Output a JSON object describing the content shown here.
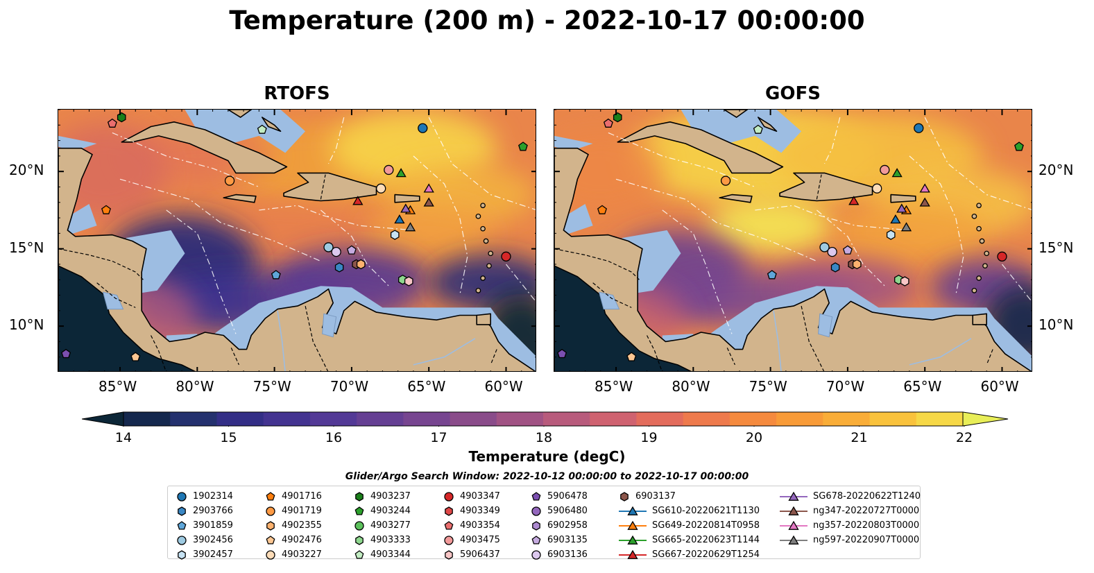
{
  "title": "Temperature (200 m) - 2022-10-17 00:00:00",
  "panels": [
    {
      "title": "RTOFS",
      "scheme": "rtofs"
    },
    {
      "title": "GOFS",
      "scheme": "gofs"
    }
  ],
  "axes": {
    "lon_ticks": [
      "85°W",
      "80°W",
      "75°W",
      "70°W",
      "65°W",
      "60°W"
    ],
    "lat_ticks": [
      "20°N",
      "15°N",
      "10°N"
    ],
    "lon_range": [
      -89,
      -58
    ],
    "lat_range": [
      7,
      24
    ]
  },
  "colorbar": {
    "label": "Temperature (degC)",
    "ticks": [
      "14",
      "15",
      "16",
      "17",
      "18",
      "19",
      "20",
      "21",
      "22"
    ],
    "range": [
      14,
      22
    ],
    "colors": [
      "#0c2637",
      "#15284e",
      "#24316e",
      "#332e86",
      "#433390",
      "#533996",
      "#653f93",
      "#774590",
      "#8a4c8a",
      "#a15384",
      "#b85b7c",
      "#cf6270",
      "#e36c5c",
      "#ee7a4c",
      "#f58a3e",
      "#f89b38",
      "#f9ad38",
      "#f9c23c",
      "#f6d847",
      "#e8ee58"
    ]
  },
  "legend": {
    "title": "Glider/Argo Search Window: 2022-10-12 00:00:00 to 2022-10-17 00:00:00",
    "columns": [
      [
        {
          "label": "1902314",
          "shape": "circle",
          "color": "#1f77b4"
        },
        {
          "label": "2903766",
          "shape": "hexagon",
          "color": "#3a87c4"
        },
        {
          "label": "3901859",
          "shape": "pentagon",
          "color": "#5fa6d9"
        },
        {
          "label": "3902456",
          "shape": "circle",
          "color": "#9ecae1"
        },
        {
          "label": "3902457",
          "shape": "hexagon",
          "color": "#c6e2f3"
        }
      ],
      [
        {
          "label": "4901716",
          "shape": "pentagon",
          "color": "#ff7f0e"
        },
        {
          "label": "4901719",
          "shape": "circle",
          "color": "#fd9a44"
        },
        {
          "label": "4902355",
          "shape": "hexagon",
          "color": "#fdb26f"
        },
        {
          "label": "4902476",
          "shape": "pentagon",
          "color": "#fdc793"
        },
        {
          "label": "4903227",
          "shape": "circle",
          "color": "#fddcb8"
        }
      ],
      [
        {
          "label": "4903237",
          "shape": "hexagon",
          "color": "#1a7f1a"
        },
        {
          "label": "4903244",
          "shape": "pentagon",
          "color": "#2ca02c"
        },
        {
          "label": "4903277",
          "shape": "circle",
          "color": "#5cc15c"
        },
        {
          "label": "4903333",
          "shape": "hexagon",
          "color": "#8fd88f"
        },
        {
          "label": "4903344",
          "shape": "pentagon",
          "color": "#c3edc3"
        }
      ],
      [
        {
          "label": "4903347",
          "shape": "circle",
          "color": "#d62728"
        },
        {
          "label": "4903349",
          "shape": "hexagon",
          "color": "#e04848"
        },
        {
          "label": "4903354",
          "shape": "pentagon",
          "color": "#ea6e6e"
        },
        {
          "label": "4903475",
          "shape": "circle",
          "color": "#f29a9a"
        },
        {
          "label": "5906437",
          "shape": "hexagon",
          "color": "#f8c6c6"
        }
      ],
      [
        {
          "label": "5906478",
          "shape": "pentagon",
          "color": "#7b4fb0"
        },
        {
          "label": "5906480",
          "shape": "circle",
          "color": "#9467bd"
        },
        {
          "label": "6902958",
          "shape": "hexagon",
          "color": "#ad8ad0"
        },
        {
          "label": "6903135",
          "shape": "pentagon",
          "color": "#c6abe0"
        },
        {
          "label": "6903136",
          "shape": "circle",
          "color": "#dcc8ee"
        }
      ],
      [
        {
          "label": "6903137",
          "shape": "hexagon",
          "color": "#8c564b"
        },
        {
          "label": "SG610-20220621T1130",
          "shape": "triangle-line",
          "color": "#1f77b4"
        },
        {
          "label": "SG649-20220814T0958",
          "shape": "triangle-line",
          "color": "#ff7f0e"
        },
        {
          "label": "SG665-20220623T1144",
          "shape": "triangle-line",
          "color": "#2ca02c"
        },
        {
          "label": "SG667-20220629T1254",
          "shape": "triangle-line",
          "color": "#d62728"
        }
      ],
      [
        {
          "label": "SG678-20220622T1240",
          "shape": "triangle-line",
          "color": "#9467bd"
        },
        {
          "label": "ng347-20220727T0000",
          "shape": "triangle-line",
          "color": "#8c564b"
        },
        {
          "label": "ng357-20220803T0000",
          "shape": "triangle-line",
          "color": "#e377c2"
        },
        {
          "label": "ng597-20220907T0000",
          "shape": "triangle-line",
          "color": "#7f7f7f"
        }
      ]
    ]
  },
  "markers": [
    {
      "id": "1902314",
      "lon": -65.4,
      "lat": 22.8
    },
    {
      "id": "4903237",
      "lon": -84.9,
      "lat": 23.5
    },
    {
      "id": "4903354",
      "lon": -85.5,
      "lat": 23.1
    },
    {
      "id": "4903344",
      "lon": -75.8,
      "lat": 22.7
    },
    {
      "id": "4903244",
      "lon": -58.9,
      "lat": 21.6
    },
    {
      "id": "4903475",
      "lon": -67.6,
      "lat": 20.1
    },
    {
      "id": "SG665-20220623T1144",
      "lon": -66.8,
      "lat": 19.9
    },
    {
      "id": "4901719",
      "lon": -77.9,
      "lat": 19.4
    },
    {
      "id": "4903227",
      "lon": -68.1,
      "lat": 18.9
    },
    {
      "id": "ng357-20220803T0000",
      "lon": -65.0,
      "lat": 18.9
    },
    {
      "id": "SG667-20220629T1254",
      "lon": -69.6,
      "lat": 18.1
    },
    {
      "id": "ng347-20220727T0000",
      "lon": -65.0,
      "lat": 18.0
    },
    {
      "id": "SG649-20220814T0958",
      "lon": -66.2,
      "lat": 17.5
    },
    {
      "id": "SG678-20220622T1240",
      "lon": -66.5,
      "lat": 17.6
    },
    {
      "id": "4901716",
      "lon": -85.9,
      "lat": 17.5
    },
    {
      "id": "SG610-20220621T1130",
      "lon": -66.9,
      "lat": 16.9
    },
    {
      "id": "ng597-20220907T0000",
      "lon": -66.2,
      "lat": 16.4
    },
    {
      "id": "3902457",
      "lon": -67.2,
      "lat": 15.9
    },
    {
      "id": "3902456",
      "lon": -71.5,
      "lat": 15.1
    },
    {
      "id": "6903136",
      "lon": -71.0,
      "lat": 14.8
    },
    {
      "id": "6903135",
      "lon": -70.0,
      "lat": 14.9
    },
    {
      "id": "4903347",
      "lon": -60.0,
      "lat": 14.5
    },
    {
      "id": "2903766",
      "lon": -70.8,
      "lat": 13.8
    },
    {
      "id": "6903137",
      "lon": -69.7,
      "lat": 14.0
    },
    {
      "id": "4902355",
      "lon": -69.4,
      "lat": 14.0
    },
    {
      "id": "3901859",
      "lon": -74.9,
      "lat": 13.3
    },
    {
      "id": "4903333",
      "lon": -66.7,
      "lat": 13.0
    },
    {
      "id": "5906437",
      "lon": -66.3,
      "lat": 12.9
    },
    {
      "id": "5906478",
      "lon": -88.5,
      "lat": 8.2
    },
    {
      "id": "4902476",
      "lon": -84.0,
      "lat": 8.0
    }
  ]
}
